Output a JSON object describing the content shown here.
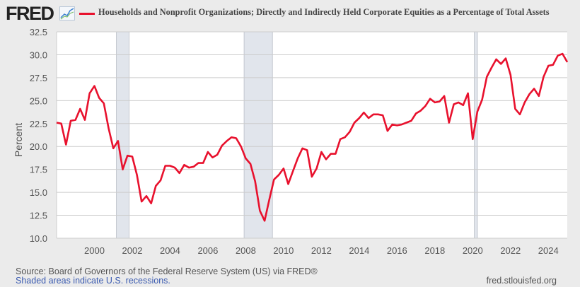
{
  "header": {
    "logo": "FRED",
    "logo_icon": "line-graph-icon"
  },
  "footer": {
    "source": "Source: Board of Governors of the Federal Reserve System (US) via FRED®",
    "recessions_note": "Shaded areas indicate U.S. recessions.",
    "site": "fred.stlouisfed.org"
  },
  "colors": {
    "series": "#e8112d",
    "recession": "#e1e5ec",
    "plot_bg": "#ffffff",
    "grid": "#cccccc",
    "page_bg": "#ebebeb"
  },
  "chart_data": {
    "type": "line",
    "title": "Households and Nonprofit Organizations; Directly and Indirectly Held Corporate Equities as a Percentage of Total Assets",
    "xlabel": "",
    "ylabel": "Percent",
    "ylim": [
      10.0,
      32.5
    ],
    "xlim": [
      "1998-01-01",
      "2025-01-01"
    ],
    "yticks": [
      "10.0",
      "12.5",
      "15.0",
      "17.5",
      "20.0",
      "22.5",
      "25.0",
      "27.5",
      "30.0",
      "32.5"
    ],
    "xticks": [
      "2000",
      "2002",
      "2004",
      "2006",
      "2008",
      "2010",
      "2012",
      "2014",
      "2016",
      "2018",
      "2020",
      "2022",
      "2024"
    ],
    "grid": true,
    "legend": "top",
    "recessions": [
      [
        "2001-03-01",
        "2001-11-01"
      ],
      [
        "2007-12-01",
        "2009-06-01"
      ],
      [
        "2020-02-01",
        "2020-04-01"
      ]
    ],
    "series": [
      {
        "name": "Households and Nonprofit Organizations; Directly and Indirectly Held Corporate Equities as a Percentage of Total Assets",
        "x": [
          "1998-01-01",
          "1998-04-01",
          "1998-07-01",
          "1998-10-01",
          "1999-01-01",
          "1999-04-01",
          "1999-07-01",
          "1999-10-01",
          "2000-01-01",
          "2000-04-01",
          "2000-07-01",
          "2000-10-01",
          "2001-01-01",
          "2001-04-01",
          "2001-07-01",
          "2001-10-01",
          "2002-01-01",
          "2002-04-01",
          "2002-07-01",
          "2002-10-01",
          "2003-01-01",
          "2003-04-01",
          "2003-07-01",
          "2003-10-01",
          "2004-01-01",
          "2004-04-01",
          "2004-07-01",
          "2004-10-01",
          "2005-01-01",
          "2005-04-01",
          "2005-07-01",
          "2005-10-01",
          "2006-01-01",
          "2006-04-01",
          "2006-07-01",
          "2006-10-01",
          "2007-01-01",
          "2007-04-01",
          "2007-07-01",
          "2007-10-01",
          "2008-01-01",
          "2008-04-01",
          "2008-07-01",
          "2008-10-01",
          "2009-01-01",
          "2009-04-01",
          "2009-07-01",
          "2009-10-01",
          "2010-01-01",
          "2010-04-01",
          "2010-07-01",
          "2010-10-01",
          "2011-01-01",
          "2011-04-01",
          "2011-07-01",
          "2011-10-01",
          "2012-01-01",
          "2012-04-01",
          "2012-07-01",
          "2012-10-01",
          "2013-01-01",
          "2013-04-01",
          "2013-07-01",
          "2013-10-01",
          "2014-01-01",
          "2014-04-01",
          "2014-07-01",
          "2014-10-01",
          "2015-01-01",
          "2015-04-01",
          "2015-07-01",
          "2015-10-01",
          "2016-01-01",
          "2016-04-01",
          "2016-07-01",
          "2016-10-01",
          "2017-01-01",
          "2017-04-01",
          "2017-07-01",
          "2017-10-01",
          "2018-01-01",
          "2018-04-01",
          "2018-07-01",
          "2018-10-01",
          "2019-01-01",
          "2019-04-01",
          "2019-07-01",
          "2019-10-01",
          "2020-01-01",
          "2020-04-01",
          "2020-07-01",
          "2020-10-01",
          "2021-01-01",
          "2021-04-01",
          "2021-07-01",
          "2021-10-01",
          "2022-01-01",
          "2022-04-01",
          "2022-07-01",
          "2022-10-01",
          "2023-01-01",
          "2023-04-01",
          "2023-07-01",
          "2023-10-01",
          "2024-01-01",
          "2024-04-01",
          "2024-07-01",
          "2024-10-01",
          "2025-01-01"
        ],
        "y": [
          22.6,
          22.5,
          20.2,
          22.8,
          22.9,
          24.1,
          22.9,
          25.8,
          26.6,
          25.3,
          24.7,
          22.0,
          19.8,
          20.6,
          17.5,
          19.0,
          18.9,
          16.9,
          14.0,
          14.6,
          13.8,
          15.7,
          16.3,
          17.9,
          17.9,
          17.7,
          17.1,
          18.0,
          17.7,
          17.8,
          18.2,
          18.2,
          19.4,
          18.8,
          19.1,
          20.1,
          20.6,
          21.0,
          20.9,
          20.0,
          18.7,
          18.1,
          16.2,
          13.0,
          11.9,
          14.2,
          16.4,
          16.9,
          17.6,
          15.9,
          17.3,
          18.7,
          19.8,
          19.6,
          16.7,
          17.6,
          19.4,
          18.6,
          19.2,
          19.2,
          20.8,
          21.0,
          21.6,
          22.6,
          23.1,
          23.7,
          23.1,
          23.5,
          23.5,
          23.4,
          21.7,
          22.4,
          22.3,
          22.4,
          22.6,
          22.8,
          23.6,
          23.9,
          24.4,
          25.2,
          24.8,
          24.9,
          25.5,
          22.6,
          24.6,
          24.8,
          24.5,
          25.8,
          20.8,
          23.8,
          25.1,
          27.6,
          28.6,
          29.5,
          29.0,
          29.6,
          27.8,
          24.1,
          23.5,
          24.8,
          25.7,
          26.3,
          25.5,
          27.6,
          28.8,
          28.9,
          29.9,
          30.1,
          29.2
        ]
      }
    ]
  }
}
